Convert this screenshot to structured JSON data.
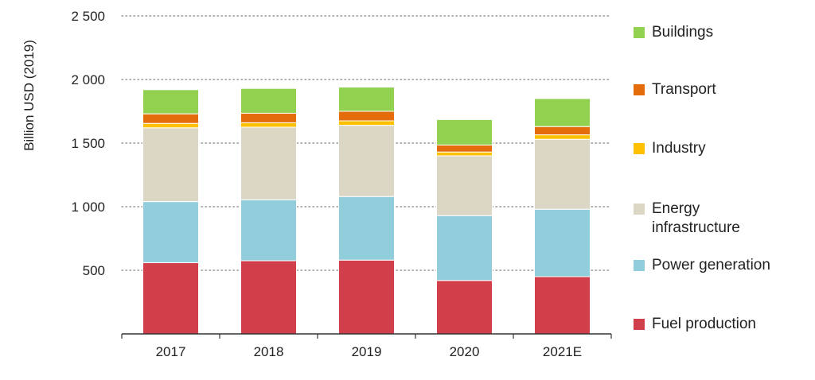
{
  "chart_data": {
    "type": "bar",
    "stacked": true,
    "ylabel": "Billion USD (2019)",
    "xlabel": "",
    "ylim": [
      0,
      2500
    ],
    "yticks": [
      500,
      1000,
      1500,
      2000,
      2500
    ],
    "ytick_labels": [
      "500",
      "1 000",
      "1 500",
      "2 000",
      "2 500"
    ],
    "grid": "horizontal dotted",
    "legend_position": "right",
    "categories": [
      "2017",
      "2018",
      "2019",
      "2020",
      "2021E"
    ],
    "series": [
      {
        "name": "Fuel production",
        "color": "#d1404a",
        "values": [
          560,
          575,
          580,
          420,
          450
        ]
      },
      {
        "name": "Power generation",
        "color": "#92cddc",
        "values": [
          480,
          480,
          500,
          510,
          530
        ]
      },
      {
        "name": "Energy infrastructure",
        "color": "#dbd7c4",
        "values": [
          580,
          570,
          560,
          470,
          550
        ]
      },
      {
        "name": "Industry",
        "color": "#ffc000",
        "values": [
          35,
          35,
          35,
          30,
          35
        ]
      },
      {
        "name": "Transport",
        "color": "#e46c0a",
        "values": [
          75,
          75,
          75,
          55,
          65
        ]
      },
      {
        "name": "Buildings",
        "color": "#92d050",
        "values": [
          190,
          195,
          190,
          200,
          220
        ]
      }
    ]
  },
  "legend": {
    "items": [
      {
        "label": "Buildings",
        "color": "#92d050"
      },
      {
        "label": "Transport",
        "color": "#e46c0a"
      },
      {
        "label": "Industry",
        "color": "#ffc000"
      },
      {
        "label": "Energy\ninfrastructure",
        "color": "#dbd7c4"
      },
      {
        "label": "Power generation",
        "color": "#92cddc"
      },
      {
        "label": "Fuel production",
        "color": "#d1404a"
      }
    ]
  }
}
